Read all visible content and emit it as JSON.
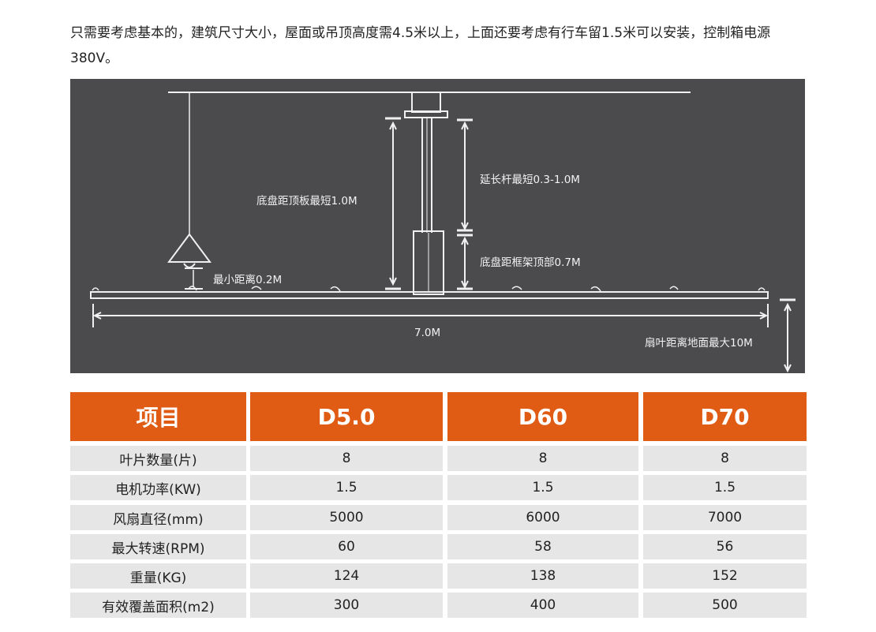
{
  "intro_text": "只需要考虑基本的，建筑尺寸大小，屋面或吊顶高度需4.5米以上，上面还要考虑有行车留1.5米可以安装，控制箱电源380V。",
  "diagram": {
    "labels": {
      "chassis_to_ceiling": "底盘距顶板最短1.0M",
      "extension_rod": "延长杆最短0.3-1.0M",
      "chassis_to_frame": "底盘距框架顶部0.7M",
      "min_distance": "最小距离0.2M",
      "span": "7.0M",
      "blade_to_ground": "扇叶距离地面最大10M"
    },
    "line_color": "#f0f0f0",
    "background": "#4b4b4e"
  },
  "table": {
    "header_color": "#e05b13",
    "headers": [
      "项目",
      "D5.0",
      "D60",
      "D70"
    ],
    "rows": [
      [
        "叶片数量(片)",
        "8",
        "8",
        "8"
      ],
      [
        "电机功率(KW)",
        "1.5",
        "1.5",
        "1.5"
      ],
      [
        "风扇直径(mm)",
        "5000",
        "6000",
        "7000"
      ],
      [
        "最大转速(RPM)",
        "60",
        "58",
        "56"
      ],
      [
        "重量(KG)",
        "124",
        "138",
        "152"
      ],
      [
        "有效覆盖面积(m2)",
        "300",
        "400",
        "500"
      ]
    ]
  }
}
